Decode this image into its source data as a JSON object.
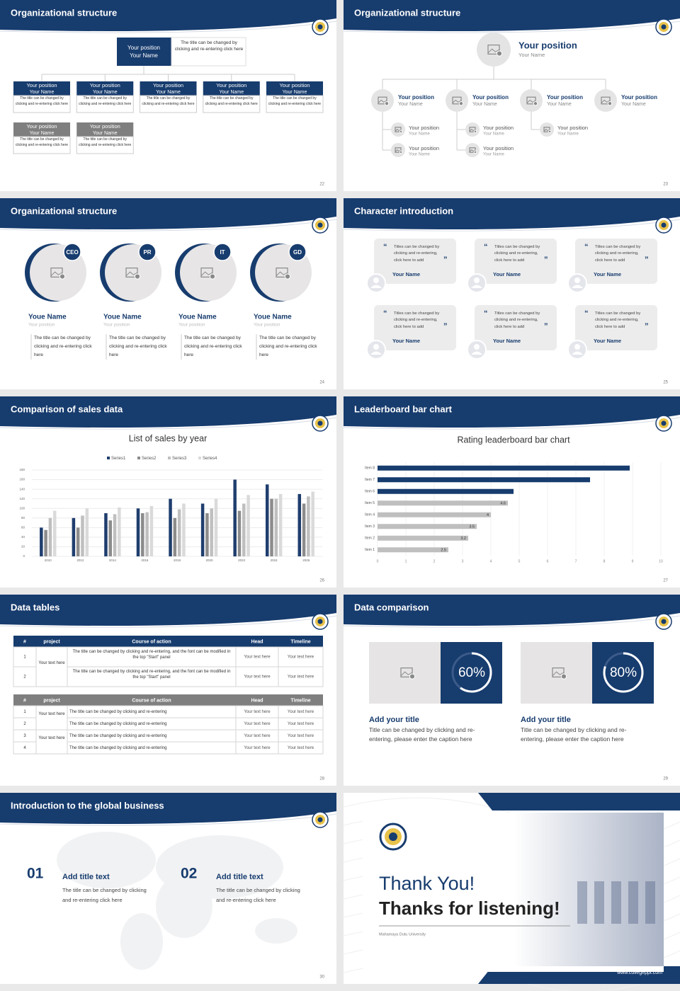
{
  "slides": [
    {
      "title": "Organizational structure",
      "page": 22,
      "top": {
        "position": "Your position",
        "name": "Your Name",
        "note": "The title can be changed by clicking and re-entering click here"
      },
      "row1": [
        {
          "position": "Your position",
          "name": "Your Name",
          "text": "The title can be changed by clicking and re-entering click here"
        },
        {
          "position": "Your position",
          "name": "Your Name",
          "text": "The title can be changed by clicking and re-entering click here"
        },
        {
          "position": "Your position",
          "name": "Your Name",
          "text": "The title can be changed by clicking and re-entering click here"
        },
        {
          "position": "Your position",
          "name": "Your Name",
          "text": "The title can be changed by clicking and re-entering click here"
        },
        {
          "position": "Your position",
          "name": "Your Name",
          "text": "The title can be changed by clicking and re-entering click here"
        }
      ],
      "row2": [
        {
          "position": "Your position",
          "name": "Your Name",
          "text": "The title can be changed by clicking and re-entering click here"
        },
        {
          "position": "Your position",
          "name": "Your Name",
          "text": "The title can be changed by clicking and re-entering click here"
        }
      ]
    },
    {
      "title": "Organizational structure",
      "page": 23,
      "top": {
        "position": "Your position",
        "name": "Your Name"
      },
      "nodes": [
        {
          "position": "Your position",
          "name": "Your Name",
          "children": [
            {
              "position": "Your position",
              "name": "Your Name"
            },
            {
              "position": "Your position",
              "name": "Your Name"
            }
          ]
        },
        {
          "position": "Your position",
          "name": "Your Name",
          "children": [
            {
              "position": "Your position",
              "name": "Your Name"
            },
            {
              "position": "Your position",
              "name": "Your Name"
            }
          ]
        },
        {
          "position": "Your position",
          "name": "Your Name",
          "children": [
            {
              "position": "Your position",
              "name": "Your Name"
            }
          ]
        },
        {
          "position": "Your position",
          "name": "Your Name",
          "children": []
        }
      ]
    },
    {
      "title": "Organizational structure",
      "page": 24,
      "people": [
        {
          "badge": "CEO",
          "name": "Youe Name",
          "role": "Your position",
          "text": "The title can be changed by clicking and re-entering click here"
        },
        {
          "badge": "PR",
          "name": "Youe Name",
          "role": "Your position",
          "text": "The title can be changed by clicking and re-entering click here"
        },
        {
          "badge": "IT",
          "name": "Youe Name",
          "role": "Your position",
          "text": "The title can be changed by clicking and re-entering click here"
        },
        {
          "badge": "GD",
          "name": "Youe Name",
          "role": "Your position",
          "text": "The title can be changed by clicking and re-entering click here"
        }
      ]
    },
    {
      "title": "Character introduction",
      "page": 25,
      "cards": [
        {
          "text": "Titles can be changed by clicking and re-entering, click here to add",
          "name": "Your Name"
        },
        {
          "text": "Titles can be changed by clicking and re-entering, click here to add",
          "name": "Your Name"
        },
        {
          "text": "Titles can be changed by clicking and re-entering, click here to add",
          "name": "Your Name"
        },
        {
          "text": "Titles can be changed by clicking and re-entering, click here to add",
          "name": "Your Name"
        },
        {
          "text": "Titles can be changed by clicking and re-entering, click here to add",
          "name": "Your Name"
        },
        {
          "text": "Titles can be changed by clicking and re-entering, click here to add",
          "name": "Your Name"
        }
      ]
    },
    {
      "title": "Comparison of sales data",
      "page": 26,
      "chart": {
        "type": "bar",
        "title": "List of sales by year",
        "categories": [
          "2010",
          "2012",
          "2014",
          "2016",
          "2018",
          "2020",
          "2022",
          "2024",
          "2026"
        ],
        "series": [
          {
            "name": "Series1",
            "color": "#1f3e6e",
            "values": [
              60,
              80,
              90,
              100,
              120,
              110,
              160,
              150,
              130
            ]
          },
          {
            "name": "Series2",
            "color": "#8c8c8c",
            "values": [
              55,
              60,
              75,
              90,
              80,
              90,
              95,
              120,
              110
            ]
          },
          {
            "name": "Series3",
            "color": "#bfbfbf",
            "values": [
              80,
              85,
              88,
              92,
              98,
              100,
              110,
              120,
              125
            ]
          },
          {
            "name": "Series4",
            "color": "#dadada",
            "values": [
              95,
              100,
              102,
              105,
              110,
              120,
              128,
              130,
              135
            ]
          }
        ],
        "ylim": [
          0,
          180
        ],
        "yticks": [
          0,
          20,
          40,
          60,
          80,
          100,
          120,
          140,
          160,
          180
        ],
        "grid": true
      }
    },
    {
      "title": "Leaderboard bar chart",
      "page": 27,
      "chart": {
        "type": "barh",
        "title": "Rating leaderboard bar chart",
        "categories": [
          "Item 1",
          "Item 2",
          "Item 3",
          "Item 4",
          "Item 5",
          "Item 6",
          "Item 7",
          "Item 8"
        ],
        "values": [
          2.5,
          3.2,
          3.5,
          4,
          4.6,
          4.8,
          7.5,
          8.9
        ],
        "value_labels": [
          "2.5",
          "3.2",
          "3.5",
          "4",
          "4.6",
          null,
          null,
          null
        ],
        "colors": [
          "#bfbfbf",
          "#bfbfbf",
          "#bfbfbf",
          "#bfbfbf",
          "#bfbfbf",
          "#173c6e",
          "#173c6e",
          "#173c6e"
        ],
        "xlim": [
          0,
          10
        ],
        "xticks": [
          0,
          1,
          2,
          3,
          4,
          5,
          6,
          7,
          8,
          9,
          10
        ],
        "grid": true
      }
    },
    {
      "title": "Data tables",
      "page": 28,
      "tables": [
        {
          "header": [
            "#",
            "project",
            "Course of action",
            "Head",
            "Timeline"
          ],
          "color": "#173c6e",
          "groups": [
            {
              "project": "Your text here",
              "rows": [
                {
                  "num": "1",
                  "action": "The title can be changed by clicking and re-entering, and the font can be modified in the top \"Start\" panel",
                  "head": "Your text here",
                  "timeline": "Your text here"
                },
                {
                  "num": "2",
                  "action": "The title can be changed by clicking and re-entering, and the font can be modified in the top \"Start\" panel",
                  "head": "Your text here",
                  "timeline": "Your text here"
                }
              ]
            }
          ]
        },
        {
          "header": [
            "#",
            "project",
            "Course of action",
            "Head",
            "Timeline"
          ],
          "color": "#7f7f7f",
          "groups": [
            {
              "project": "Your text here",
              "rows": [
                {
                  "num": "1",
                  "action": "The title can be changed by clicking and re-entering",
                  "head": "Your text here",
                  "timeline": "Your text here"
                },
                {
                  "num": "2",
                  "action": "The title can be changed by clicking and re-entering",
                  "head": "Your text here",
                  "timeline": "Your text here"
                }
              ]
            },
            {
              "project": "Your text here",
              "rows": [
                {
                  "num": "3",
                  "action": "The title can be changed by clicking and re-entering",
                  "head": "Your text here",
                  "timeline": "Your text here"
                },
                {
                  "num": "4",
                  "action": "The title can be changed by clicking and re-entering",
                  "head": "Your text here",
                  "timeline": "Your text here"
                }
              ]
            }
          ]
        }
      ]
    },
    {
      "title": "Data comparison",
      "page": 29,
      "items": [
        {
          "percent": {
            "value": 60,
            "label": "60%"
          },
          "title": "Add your title",
          "text": "Title can be changed by clicking and re-entering, please enter the caption here"
        },
        {
          "percent": {
            "value": 80,
            "label": "80%"
          },
          "title": "Add your title",
          "text": "Title can be changed by clicking and re-entering, please enter the caption here"
        }
      ]
    },
    {
      "title": "Introduction to the global business",
      "page": 30,
      "items": [
        {
          "number": "01",
          "title": "Add title text",
          "text": "The title can be changed by clicking and re-entering click here"
        },
        {
          "number": "02",
          "title": "Add title text",
          "text": "The title can be changed by clicking and re-entering click here"
        }
      ]
    },
    {
      "thanks": "Thank You!",
      "message": "Thanks for listening!",
      "caption": "Mahamaya Dutu University",
      "website": "www.collegeppt.com"
    }
  ]
}
